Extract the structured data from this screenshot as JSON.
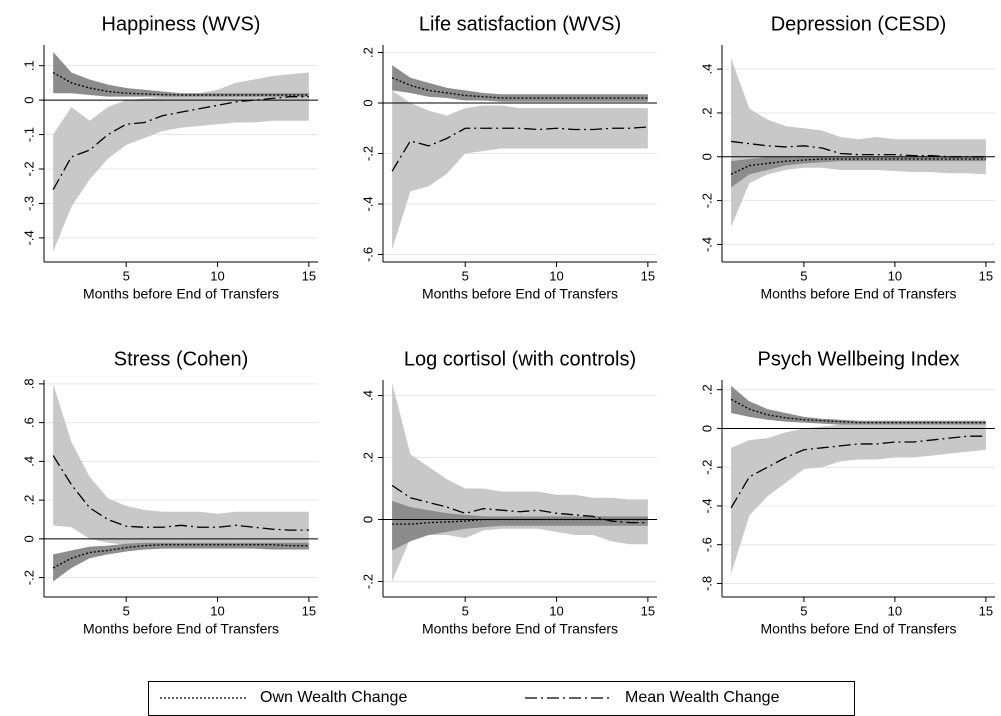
{
  "chart_data": [
    {
      "type": "line",
      "title": "Happiness (WVS)",
      "xlabel": "Months before End of Transfers",
      "x": [
        1,
        2,
        3,
        4,
        5,
        6,
        7,
        8,
        9,
        10,
        11,
        12,
        13,
        14,
        15
      ],
      "xlim": [
        0.5,
        15.5
      ],
      "xticks": [
        5,
        10,
        15
      ],
      "ylim": [
        -0.47,
        0.16
      ],
      "yticks": [
        {
          "value": -0.4,
          "label": "-.4"
        },
        {
          "value": -0.3,
          "label": "-.3"
        },
        {
          "value": -0.2,
          "label": "-.2"
        },
        {
          "value": -0.1,
          "label": "-.1"
        },
        0,
        {
          "value": 0.1,
          "label": ".1"
        }
      ],
      "grid": true,
      "refline": 0,
      "series": [
        {
          "dash": "2,2",
          "color": "#000000",
          "band_color": "#8c8c8c",
          "values": [
            0.08,
            0.05,
            0.035,
            0.025,
            0.02,
            0.018,
            0.016,
            0.015,
            0.015,
            0.015,
            0.015,
            0.015,
            0.015,
            0.015,
            0.015
          ],
          "upper": [
            0.14,
            0.08,
            0.06,
            0.045,
            0.035,
            0.03,
            0.025,
            0.02,
            0.02,
            0.02,
            0.02,
            0.02,
            0.02,
            0.02,
            0.02
          ],
          "lower": [
            0.02,
            0.02,
            0.015,
            0.01,
            0.01,
            0.01,
            0.01,
            0.01,
            0.01,
            0.01,
            0.01,
            0.01,
            0.01,
            0.01,
            0.01
          ]
        },
        {
          "dash": "12,4,2,4",
          "color": "#000000",
          "band_color": "#c8c8c8",
          "values": [
            -0.26,
            -0.165,
            -0.145,
            -0.1,
            -0.07,
            -0.065,
            -0.045,
            -0.035,
            -0.025,
            -0.015,
            -0.005,
            0,
            0.005,
            0.01,
            0.01
          ],
          "upper": [
            -0.1,
            -0.02,
            -0.06,
            -0.02,
            0,
            0.005,
            0.01,
            0.015,
            0.02,
            0.03,
            0.05,
            0.06,
            0.07,
            0.075,
            0.08
          ],
          "lower": [
            -0.44,
            -0.31,
            -0.23,
            -0.17,
            -0.13,
            -0.11,
            -0.09,
            -0.08,
            -0.075,
            -0.07,
            -0.065,
            -0.065,
            -0.06,
            -0.06,
            -0.06
          ]
        }
      ]
    },
    {
      "type": "line",
      "title": "Life satisfaction (WVS)",
      "xlabel": "Months before End of Transfers",
      "x": [
        1,
        2,
        3,
        4,
        5,
        6,
        7,
        8,
        9,
        10,
        11,
        12,
        13,
        14,
        15
      ],
      "xlim": [
        0.5,
        15.5
      ],
      "xticks": [
        5,
        10,
        15
      ],
      "ylim": [
        -0.63,
        0.23
      ],
      "yticks": [
        {
          "value": -0.6,
          "label": "-.6"
        },
        {
          "value": -0.4,
          "label": "-.4"
        },
        {
          "value": -0.2,
          "label": "-.2"
        },
        0,
        {
          "value": 0.2,
          "label": ".2"
        }
      ],
      "grid": true,
      "refline": 0,
      "series": [
        {
          "dash": "2,2",
          "color": "#000000",
          "band_color": "#8c8c8c",
          "values": [
            0.1,
            0.07,
            0.05,
            0.04,
            0.03,
            0.025,
            0.02,
            0.02,
            0.02,
            0.02,
            0.02,
            0.02,
            0.02,
            0.02,
            0.02
          ],
          "upper": [
            0.15,
            0.1,
            0.08,
            0.06,
            0.05,
            0.04,
            0.035,
            0.035,
            0.035,
            0.035,
            0.035,
            0.035,
            0.035,
            0.035,
            0.035
          ],
          "lower": [
            0.05,
            0.04,
            0.025,
            0.02,
            0.01,
            0.01,
            0.005,
            0.005,
            0.005,
            0.005,
            0.005,
            0.005,
            0.005,
            0.005,
            0.005
          ]
        },
        {
          "dash": "12,4,2,4",
          "color": "#000000",
          "band_color": "#c8c8c8",
          "values": [
            -0.27,
            -0.15,
            -0.17,
            -0.14,
            -0.1,
            -0.1,
            -0.1,
            -0.1,
            -0.105,
            -0.1,
            -0.105,
            -0.105,
            -0.1,
            -0.1,
            -0.095
          ],
          "upper": [
            0.05,
            0,
            -0.03,
            -0.05,
            -0.02,
            -0.01,
            -0.01,
            -0.02,
            -0.02,
            -0.02,
            -0.02,
            -0.02,
            -0.02,
            -0.02,
            -0.02
          ],
          "lower": [
            -0.58,
            -0.35,
            -0.33,
            -0.28,
            -0.2,
            -0.19,
            -0.18,
            -0.18,
            -0.18,
            -0.18,
            -0.18,
            -0.18,
            -0.18,
            -0.18,
            -0.18
          ]
        }
      ]
    },
    {
      "type": "line",
      "title": "Depression (CESD)",
      "xlabel": "Months before End of Transfers",
      "x": [
        1,
        2,
        3,
        4,
        5,
        6,
        7,
        8,
        9,
        10,
        11,
        12,
        13,
        14,
        15
      ],
      "xlim": [
        0.5,
        15.5
      ],
      "xticks": [
        5,
        10,
        15
      ],
      "ylim": [
        -0.48,
        0.51
      ],
      "yticks": [
        {
          "value": -0.4,
          "label": "-.4"
        },
        {
          "value": -0.2,
          "label": "-.2"
        },
        0,
        {
          "value": 0.2,
          "label": ".2"
        },
        {
          "value": 0.4,
          "label": ".4"
        }
      ],
      "grid": true,
      "refline": 0,
      "series": [
        {
          "dash": "2,2",
          "color": "#000000",
          "band_color": "#8c8c8c",
          "values": [
            -0.08,
            -0.04,
            -0.03,
            -0.02,
            -0.015,
            -0.01,
            -0.01,
            -0.01,
            -0.01,
            -0.01,
            -0.01,
            -0.01,
            -0.01,
            -0.01,
            -0.01
          ],
          "upper": [
            -0.02,
            -0.01,
            0,
            0,
            0,
            0,
            0,
            0,
            0,
            0,
            0,
            0,
            0,
            0,
            0
          ],
          "lower": [
            -0.14,
            -0.08,
            -0.06,
            -0.04,
            -0.03,
            -0.025,
            -0.02,
            -0.02,
            -0.02,
            -0.02,
            -0.02,
            -0.02,
            -0.02,
            -0.02,
            -0.02
          ]
        },
        {
          "dash": "12,4,2,4",
          "color": "#000000",
          "band_color": "#c8c8c8",
          "values": [
            0.07,
            0.06,
            0.05,
            0.045,
            0.05,
            0.04,
            0.015,
            0.01,
            0.01,
            0.01,
            0.005,
            0.005,
            0,
            0,
            0
          ],
          "upper": [
            0.45,
            0.22,
            0.17,
            0.14,
            0.13,
            0.12,
            0.09,
            0.08,
            0.09,
            0.08,
            0.08,
            0.08,
            0.08,
            0.08,
            0.08
          ],
          "lower": [
            -0.32,
            -0.12,
            -0.08,
            -0.06,
            -0.05,
            -0.05,
            -0.06,
            -0.06,
            -0.06,
            -0.065,
            -0.07,
            -0.07,
            -0.075,
            -0.075,
            -0.08
          ]
        }
      ]
    },
    {
      "type": "line",
      "title": "Stress (Cohen)",
      "xlabel": "Months before End of Transfers",
      "x": [
        1,
        2,
        3,
        4,
        5,
        6,
        7,
        8,
        9,
        10,
        11,
        12,
        13,
        14,
        15
      ],
      "xlim": [
        0.5,
        15.5
      ],
      "xticks": [
        5,
        10,
        15
      ],
      "ylim": [
        -0.3,
        0.82
      ],
      "yticks": [
        {
          "value": -0.2,
          "label": "-.2"
        },
        0,
        {
          "value": 0.2,
          "label": ".2"
        },
        {
          "value": 0.4,
          "label": ".4"
        },
        {
          "value": 0.6,
          "label": ".6"
        },
        {
          "value": 0.8,
          "label": ".8"
        }
      ],
      "grid": true,
      "refline": 0,
      "series": [
        {
          "dash": "2,2",
          "color": "#000000",
          "band_color": "#8c8c8c",
          "values": [
            -0.15,
            -0.1,
            -0.07,
            -0.06,
            -0.045,
            -0.035,
            -0.03,
            -0.03,
            -0.03,
            -0.03,
            -0.03,
            -0.03,
            -0.03,
            -0.035,
            -0.035
          ],
          "upper": [
            -0.08,
            -0.06,
            -0.04,
            -0.035,
            -0.025,
            -0.02,
            -0.02,
            -0.02,
            -0.02,
            -0.02,
            -0.02,
            -0.02,
            -0.02,
            -0.02,
            -0.02
          ],
          "lower": [
            -0.22,
            -0.15,
            -0.1,
            -0.08,
            -0.065,
            -0.055,
            -0.05,
            -0.05,
            -0.05,
            -0.05,
            -0.05,
            -0.05,
            -0.055,
            -0.055,
            -0.055
          ]
        },
        {
          "dash": "12,4,2,4",
          "color": "#000000",
          "band_color": "#c8c8c8",
          "values": [
            0.43,
            0.28,
            0.16,
            0.1,
            0.065,
            0.06,
            0.06,
            0.07,
            0.06,
            0.06,
            0.07,
            0.06,
            0.05,
            0.045,
            0.045
          ],
          "upper": [
            0.8,
            0.5,
            0.32,
            0.21,
            0.17,
            0.15,
            0.14,
            0.14,
            0.14,
            0.13,
            0.14,
            0.14,
            0.14,
            0.14,
            0.14
          ],
          "lower": [
            0.07,
            0.06,
            0,
            -0.02,
            -0.03,
            -0.03,
            -0.03,
            -0.02,
            -0.03,
            -0.03,
            -0.02,
            -0.03,
            -0.04,
            -0.04,
            -0.05
          ]
        }
      ]
    },
    {
      "type": "line",
      "title": "Log cortisol (with controls)",
      "xlabel": "Months before End of Transfers",
      "x": [
        1,
        2,
        3,
        4,
        5,
        6,
        7,
        8,
        9,
        10,
        11,
        12,
        13,
        14,
        15
      ],
      "xlim": [
        0.5,
        15.5
      ],
      "xticks": [
        5,
        10,
        15
      ],
      "ylim": [
        -0.25,
        0.45
      ],
      "yticks": [
        {
          "value": -0.2,
          "label": "-.2"
        },
        0,
        {
          "value": 0.2,
          "label": ".2"
        },
        {
          "value": 0.4,
          "label": ".4"
        }
      ],
      "grid": true,
      "refline": 0,
      "series": [
        {
          "dash": "2,2",
          "color": "#000000",
          "band_color": "#8c8c8c",
          "values": [
            -0.015,
            -0.015,
            -0.01,
            -0.008,
            -0.005,
            0,
            0,
            0,
            0,
            0,
            0,
            0,
            0,
            0,
            0
          ],
          "upper": [
            0.06,
            0.04,
            0.03,
            0.02,
            0.015,
            0.01,
            0.01,
            0.01,
            0.01,
            0.01,
            0.01,
            0.01,
            0.01,
            0.01,
            0.01
          ],
          "lower": [
            -0.1,
            -0.07,
            -0.05,
            -0.04,
            -0.03,
            -0.025,
            -0.02,
            -0.02,
            -0.02,
            -0.02,
            -0.02,
            -0.02,
            -0.02,
            -0.02,
            -0.02
          ]
        },
        {
          "dash": "12,4,2,4",
          "color": "#000000",
          "band_color": "#c8c8c8",
          "values": [
            0.11,
            0.07,
            0.055,
            0.04,
            0.02,
            0.035,
            0.03,
            0.025,
            0.03,
            0.02,
            0.015,
            0.01,
            -0.005,
            -0.01,
            -0.01
          ],
          "upper": [
            0.44,
            0.21,
            0.17,
            0.13,
            0.1,
            0.1,
            0.09,
            0.09,
            0.09,
            0.08,
            0.08,
            0.07,
            0.07,
            0.065,
            0.065
          ],
          "lower": [
            -0.2,
            -0.06,
            -0.05,
            -0.05,
            -0.06,
            -0.035,
            -0.03,
            -0.03,
            -0.03,
            -0.04,
            -0.05,
            -0.05,
            -0.07,
            -0.08,
            -0.08
          ]
        }
      ]
    },
    {
      "type": "line",
      "title": "Psych Wellbeing Index",
      "xlabel": "Months before End of Transfers",
      "x": [
        1,
        2,
        3,
        4,
        5,
        6,
        7,
        8,
        9,
        10,
        11,
        12,
        13,
        14,
        15
      ],
      "xlim": [
        0.5,
        15.5
      ],
      "xticks": [
        5,
        10,
        15
      ],
      "ylim": [
        -0.87,
        0.25
      ],
      "yticks": [
        {
          "value": -0.8,
          "label": "-.8"
        },
        {
          "value": -0.6,
          "label": "-.6"
        },
        {
          "value": -0.4,
          "label": "-.4"
        },
        {
          "value": -0.2,
          "label": "-.2"
        },
        0,
        {
          "value": 0.2,
          "label": ".2"
        }
      ],
      "grid": true,
      "refline": 0,
      "series": [
        {
          "dash": "2,2",
          "color": "#000000",
          "band_color": "#8c8c8c",
          "values": [
            0.15,
            0.1,
            0.07,
            0.055,
            0.045,
            0.04,
            0.035,
            0.03,
            0.03,
            0.03,
            0.03,
            0.03,
            0.03,
            0.03,
            0.03
          ],
          "upper": [
            0.22,
            0.14,
            0.1,
            0.08,
            0.06,
            0.05,
            0.045,
            0.04,
            0.04,
            0.04,
            0.04,
            0.04,
            0.04,
            0.04,
            0.04
          ],
          "lower": [
            0.08,
            0.06,
            0.045,
            0.035,
            0.03,
            0.025,
            0.02,
            0.02,
            0.02,
            0.02,
            0.02,
            0.02,
            0.02,
            0.02,
            0.02
          ]
        },
        {
          "dash": "12,4,2,4",
          "color": "#000000",
          "band_color": "#c8c8c8",
          "values": [
            -0.41,
            -0.25,
            -0.2,
            -0.15,
            -0.11,
            -0.1,
            -0.09,
            -0.08,
            -0.08,
            -0.07,
            -0.07,
            -0.06,
            -0.05,
            -0.04,
            -0.04
          ],
          "upper": [
            -0.1,
            -0.06,
            -0.05,
            -0.02,
            0,
            0.01,
            0.02,
            0.02,
            0.02,
            0.02,
            0.02,
            0.02,
            0.02,
            0.02,
            0.02
          ],
          "lower": [
            -0.75,
            -0.45,
            -0.35,
            -0.28,
            -0.21,
            -0.2,
            -0.17,
            -0.16,
            -0.16,
            -0.15,
            -0.15,
            -0.14,
            -0.13,
            -0.12,
            -0.11
          ]
        }
      ]
    }
  ],
  "legend": {
    "entries": [
      {
        "name": "Own Wealth Change",
        "dash": "2,2",
        "color": "#000000"
      },
      {
        "name": "Mean Wealth Change",
        "dash": "12,4,2,4",
        "color": "#000000"
      }
    ]
  }
}
